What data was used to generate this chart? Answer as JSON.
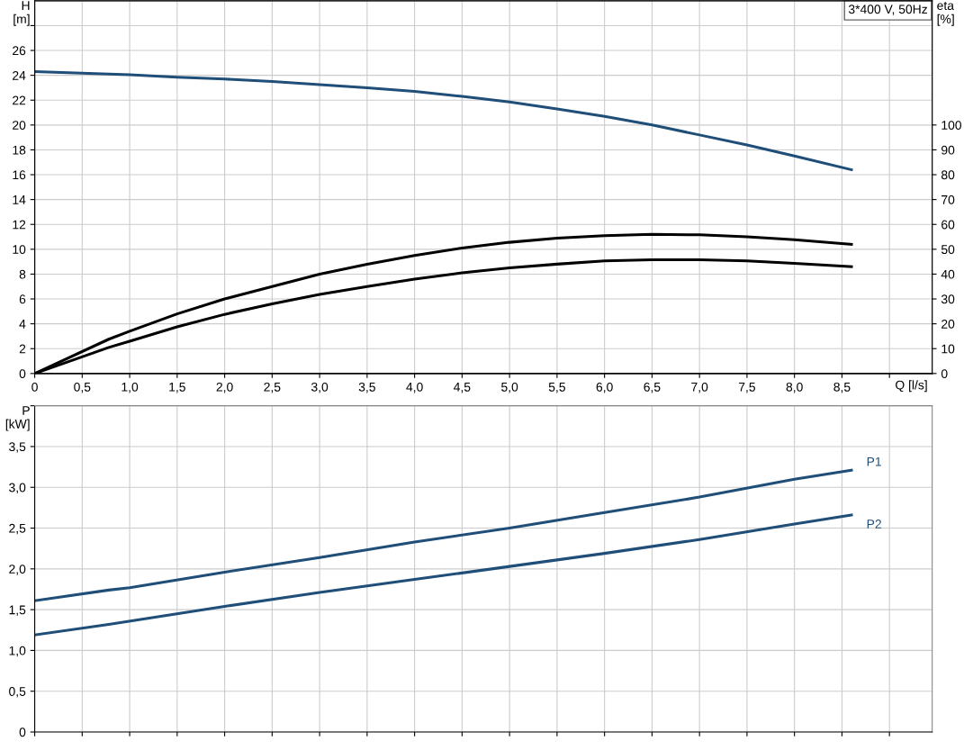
{
  "chart_data": [
    {
      "type": "line",
      "xlabel": "Q [l/s]",
      "ylabel": "H\n[m]",
      "y2label": "eta\n[%]",
      "annotations": [
        "3*400 V, 50Hz"
      ],
      "xlim": [
        0,
        9.45
      ],
      "xticks": [
        0,
        {
          "value": 0.5,
          "label": "0,5"
        },
        {
          "value": 1,
          "label": "1,0"
        },
        {
          "value": 1.5,
          "label": "1,5"
        },
        {
          "value": 2,
          "label": "2,0"
        },
        {
          "value": 2.5,
          "label": "2,5"
        },
        {
          "value": 3,
          "label": "3,0"
        },
        {
          "value": 3.5,
          "label": "3,5"
        },
        {
          "value": 4,
          "label": "4,0"
        },
        {
          "value": 4.5,
          "label": "4,5"
        },
        {
          "value": 5,
          "label": "5,0"
        },
        {
          "value": 5.5,
          "label": "5,5"
        },
        {
          "value": 6,
          "label": "6,0"
        },
        {
          "value": 6.5,
          "label": "6,5"
        },
        {
          "value": 7,
          "label": "7,0"
        },
        {
          "value": 7.5,
          "label": "7,5"
        },
        {
          "value": 8,
          "label": "8,0"
        },
        {
          "value": 8.5,
          "label": "8,5"
        },
        {
          "value": 9,
          "label": null
        }
      ],
      "ylim": [
        0,
        30
      ],
      "yticks": [
        0,
        2,
        4,
        6,
        8,
        10,
        12,
        14,
        16,
        18,
        20,
        22,
        24,
        26,
        {
          "value": 28,
          "label": null
        }
      ],
      "y2lim": [
        0,
        150
      ],
      "y2ticks": [
        0,
        10,
        20,
        30,
        40,
        50,
        60,
        70,
        80,
        90,
        100
      ],
      "grid": true,
      "marker": "none",
      "line_style": "solid",
      "series": [
        {
          "color": "#1f4e79",
          "x": [
            0,
            0.78,
            1,
            1.5,
            2,
            2.5,
            3,
            3.5,
            4,
            4.5,
            5,
            5.5,
            6,
            6.5,
            7,
            7.5,
            8,
            8.6
          ],
          "values": [
            24.3,
            24.1,
            24.05,
            23.85,
            23.7,
            23.5,
            23.25,
            23.0,
            22.7,
            22.3,
            21.85,
            21.3,
            20.7,
            20.0,
            19.2,
            18.4,
            17.5,
            16.4
          ]
        },
        {
          "color": "#000000",
          "axis": "y2",
          "x": [
            0,
            0.78,
            1,
            1.5,
            2,
            2.5,
            3,
            3.5,
            4,
            4.5,
            5,
            5.5,
            6,
            6.5,
            7,
            7.5,
            8,
            8.6
          ],
          "values": [
            0,
            13.8,
            17,
            24,
            30,
            35,
            40,
            44,
            47.5,
            50.5,
            52.8,
            54.5,
            55.5,
            56,
            55.8,
            55,
            53.8,
            52
          ]
        },
        {
          "color": "#000000",
          "axis": "y2",
          "x": [
            0,
            0.78,
            1,
            1.5,
            2,
            2.5,
            3,
            3.5,
            4,
            4.5,
            5,
            5.5,
            6,
            6.5,
            7,
            7.5,
            8,
            8.6
          ],
          "values": [
            0,
            10.5,
            13,
            18.8,
            23.8,
            28,
            31.8,
            35,
            38,
            40.5,
            42.5,
            44,
            45.3,
            45.8,
            45.8,
            45.3,
            44.3,
            43
          ]
        }
      ]
    },
    {
      "type": "line",
      "ylabel": "P\n[kW]",
      "tick_labels": "y",
      "xlim": [
        0,
        9.45
      ],
      "xticks": [
        0,
        0.5,
        1,
        1.5,
        2,
        2.5,
        3,
        3.5,
        4,
        4.5,
        5,
        5.5,
        6,
        6.5,
        7,
        7.5,
        8,
        8.5,
        9
      ],
      "ylim": [
        0,
        4.0
      ],
      "yticks": [
        0,
        {
          "value": 0.5,
          "label": "0,5"
        },
        {
          "value": 1,
          "label": "1,0"
        },
        {
          "value": 1.5,
          "label": "1,5"
        },
        {
          "value": 2,
          "label": "2,0"
        },
        {
          "value": 2.5,
          "label": "2,5"
        },
        {
          "value": 3,
          "label": "3,0"
        },
        {
          "value": 3.5,
          "label": "3,5"
        },
        {
          "value": 4,
          "label": null
        }
      ],
      "grid": true,
      "marker": "none",
      "line_style": "solid",
      "series": [
        {
          "name": "P1",
          "color": "#1f4e79",
          "x": [
            0,
            0.78,
            1,
            2,
            3,
            4,
            5,
            6,
            7,
            8,
            8.6
          ],
          "values": [
            1.61,
            1.74,
            1.77,
            1.96,
            2.14,
            2.33,
            2.5,
            2.69,
            2.88,
            3.1,
            3.21
          ]
        },
        {
          "name": "P2",
          "color": "#1f4e79",
          "x": [
            0,
            0.78,
            2,
            3,
            4,
            5,
            6,
            7,
            8,
            8.6
          ],
          "values": [
            1.19,
            1.32,
            1.54,
            1.71,
            1.87,
            2.03,
            2.19,
            2.36,
            2.55,
            2.66
          ]
        }
      ]
    }
  ]
}
